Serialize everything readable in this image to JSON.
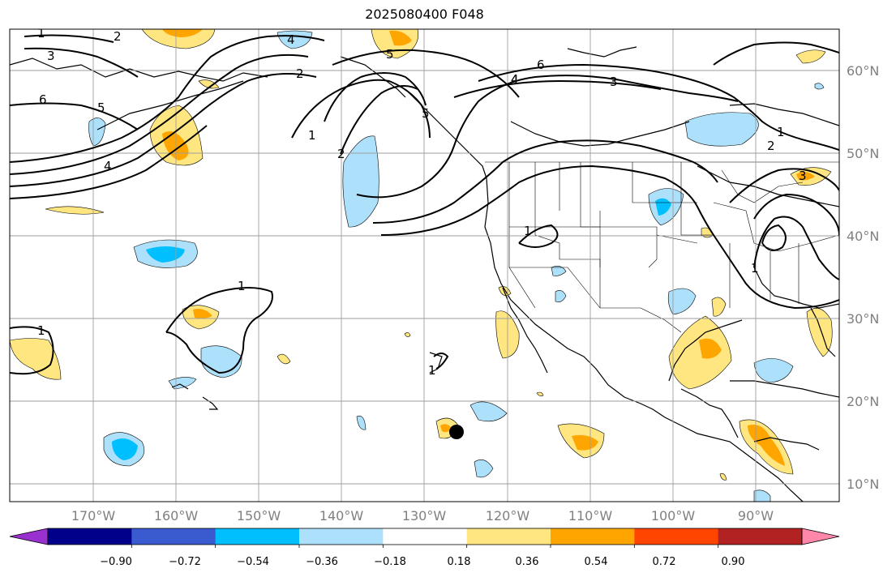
{
  "map": {
    "title": "2025080400 F048",
    "lat_labels": [
      "60°N",
      "50°N",
      "40°N",
      "30°N",
      "20°N",
      "10°N"
    ],
    "lon_labels": [
      "170°W",
      "160°W",
      "150°W",
      "140°W",
      "130°W",
      "120°W",
      "110°W",
      "100°W",
      "90°W"
    ],
    "contour_labels": [
      "1",
      "2",
      "3",
      "4",
      "5",
      "6",
      "5",
      "4",
      "4",
      "5",
      "2",
      "1",
      "2",
      "1",
      "6",
      "4",
      "3",
      "1",
      "2",
      "3",
      "1",
      "1",
      "1",
      "1"
    ],
    "marker": "storm-center-dot"
  },
  "colorbar": {
    "tick_labels": [
      "−0.90",
      "−0.72",
      "−0.54",
      "−0.36",
      "−0.18",
      "0.18",
      "0.36",
      "0.54",
      "0.72",
      "0.90"
    ],
    "colors": [
      "#9b30d0",
      "#00008b",
      "#3a5bd0",
      "#00bfff",
      "#ade0fa",
      "#ffffff",
      "#ffe680",
      "#ffa500",
      "#ff4500",
      "#b22222",
      "#ff88aa"
    ]
  }
}
